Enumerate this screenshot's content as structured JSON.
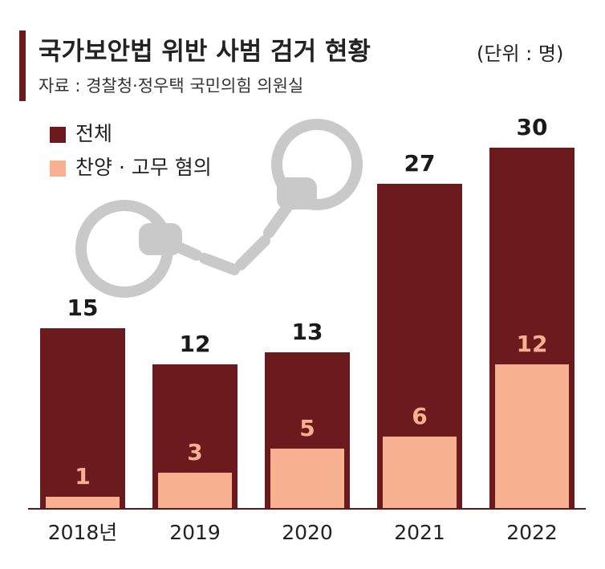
{
  "chart_data": {
    "type": "bar",
    "title": "국가보안법 위반 사범 검거 현황",
    "unit": "(단위 : 명)",
    "source": "자료 : 경찰청·정우택 국민의힘 의원실",
    "categories": [
      "2018년",
      "2019",
      "2020",
      "2021",
      "2022"
    ],
    "series": [
      {
        "name": "전체",
        "color": "#6b1a1e",
        "values": [
          15,
          12,
          13,
          27,
          30
        ]
      },
      {
        "name": "찬양 · 고무 혐의",
        "color": "#f7b190",
        "values": [
          1,
          3,
          5,
          6,
          12
        ]
      }
    ]
  }
}
